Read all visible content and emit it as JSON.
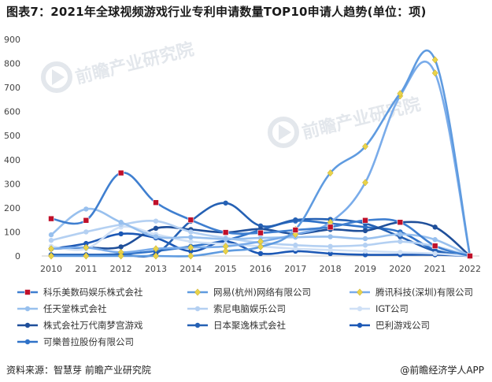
{
  "title": "图表7：2021年全球视频游戏行业专利申请数量TOP10申请人趋势(单位：项)",
  "source": "资料来源：智慧芽 前瞻产业研究院",
  "brand": "@前瞻经济学人APP",
  "watermark": "前瞻产业研究院",
  "colors": {
    "accent": "#4a86d4"
  },
  "chart_data": {
    "type": "line",
    "title": "图表7：2021年全球视频游戏行业专利申请数量TOP10申请人趋势(单位：项)",
    "xlabel": "",
    "ylabel": "",
    "ylim": [
      0,
      900
    ],
    "yticks": [
      0,
      100,
      200,
      300,
      400,
      500,
      600,
      700,
      800,
      900
    ],
    "categories": [
      "2010",
      "2011",
      "2012",
      "2013",
      "2014",
      "2015",
      "2016",
      "2017",
      "2018",
      "2019",
      "2020",
      "2021",
      "2022"
    ],
    "legend_position": "bottom",
    "grid": false,
    "series": [
      {
        "name": "科乐美数码娱乐株式会社",
        "color": "#3f7fd0",
        "marker": "square",
        "marker_color": "#c0102a",
        "values": [
          155,
          148,
          345,
          222,
          150,
          98,
          96,
          108,
          120,
          148,
          140,
          42,
          0
        ]
      },
      {
        "name": "网易(杭州)网络有限公司",
        "color": "#5f9be0",
        "marker": "diamond",
        "marker_color": "#e8d24a",
        "values": [
          0,
          0,
          0,
          0,
          0,
          20,
          38,
          110,
          345,
          455,
          675,
          815,
          0
        ]
      },
      {
        "name": "腾讯科技(深圳)有限公司",
        "color": "#7aacea",
        "marker": "diamond",
        "marker_color": "#e8d24a",
        "values": [
          30,
          35,
          15,
          30,
          35,
          40,
          60,
          90,
          140,
          305,
          665,
          760,
          0
        ]
      },
      {
        "name": "任天堂株式会社",
        "color": "#98c0ee",
        "marker": "circle",
        "values": [
          88,
          195,
          140,
          80,
          78,
          70,
          75,
          78,
          80,
          72,
          90,
          68,
          0
        ]
      },
      {
        "name": "索尼电脑娱乐公司",
        "color": "#b4d0f2",
        "marker": "circle",
        "values": [
          65,
          100,
          130,
          145,
          100,
          75,
          55,
          45,
          40,
          45,
          60,
          40,
          0
        ]
      },
      {
        "name": "IGT公司",
        "color": "#cfe0f6",
        "marker": "circle",
        "values": [
          40,
          30,
          120,
          90,
          60,
          50,
          40,
          30,
          25,
          20,
          15,
          10,
          0
        ]
      },
      {
        "name": "株式会社万代南梦宫游戏",
        "color": "#1f4f9a",
        "marker": "circle",
        "values": [
          30,
          35,
          38,
          115,
          110,
          98,
          112,
          92,
          110,
          105,
          140,
          120,
          0
        ]
      },
      {
        "name": "日本聚逸株式会社",
        "color": "#2561b4",
        "marker": "circle",
        "values": [
          5,
          5,
          5,
          10,
          145,
          220,
          125,
          150,
          152,
          135,
          80,
          20,
          0
        ]
      },
      {
        "name": "巴利游戏公司",
        "color": "#1c58b5",
        "marker": "circle",
        "values": [
          30,
          52,
          92,
          75,
          20,
          60,
          10,
          20,
          10,
          5,
          5,
          5,
          0
        ]
      },
      {
        "name": "可樂普拉股份有限公司",
        "color": "#2f72c8",
        "marker": "circle",
        "values": [
          5,
          5,
          8,
          20,
          40,
          65,
          108,
          145,
          135,
          120,
          100,
          25,
          0
        ]
      }
    ]
  }
}
